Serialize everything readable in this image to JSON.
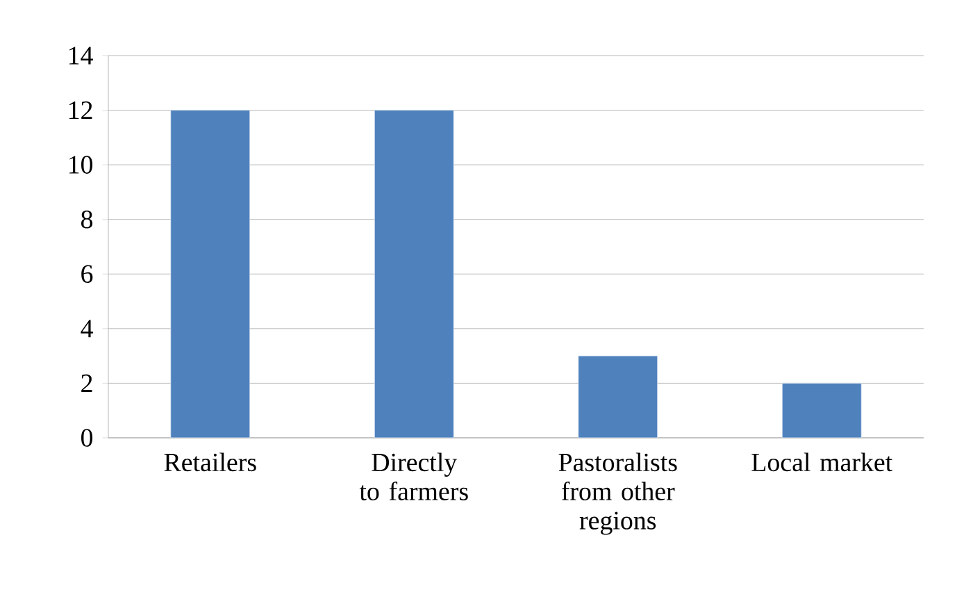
{
  "chart_data": {
    "type": "bar",
    "categories": [
      "Retailers",
      "Directly to farmers",
      "Pastoralists from other regions",
      "Local market"
    ],
    "values": [
      12,
      12,
      3,
      2
    ],
    "color": "#4f81bd",
    "ylim": [
      0,
      14
    ],
    "yticks": [
      0,
      2,
      4,
      6,
      8,
      10,
      12,
      14
    ],
    "grid": "y"
  }
}
